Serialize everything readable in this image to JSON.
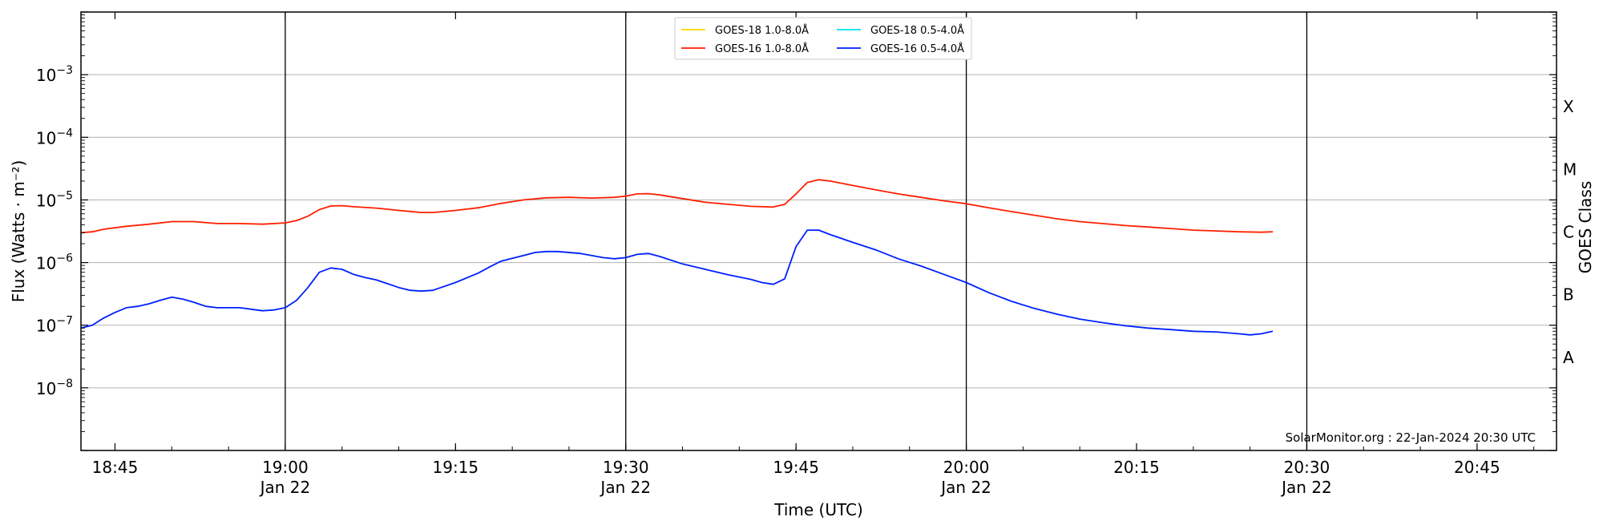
{
  "chart_data": {
    "type": "line",
    "xlabel": "Time (UTC)",
    "ylabel": "Flux (Watts · m⁻²)",
    "right_ylabel": "GOES Class",
    "credit": "SolarMonitor.org : 22-Jan-2024 20:30 UTC",
    "y_scale": "log",
    "ylim": [
      1e-09,
      0.01
    ],
    "xlim": [
      "2024-01-22 18:42",
      "2024-01-22 20:52"
    ],
    "x_ticks": [
      {
        "time": "18:45",
        "label": "18:45",
        "date": ""
      },
      {
        "time": "19:00",
        "label": "19:00",
        "date": "Jan 22"
      },
      {
        "time": "19:15",
        "label": "19:15",
        "date": ""
      },
      {
        "time": "19:30",
        "label": "19:30",
        "date": "Jan 22"
      },
      {
        "time": "19:45",
        "label": "19:45",
        "date": ""
      },
      {
        "time": "20:00",
        "label": "20:00",
        "date": "Jan 22"
      },
      {
        "time": "20:15",
        "label": "20:15",
        "date": ""
      },
      {
        "time": "20:30",
        "label": "20:30",
        "date": "Jan 22"
      },
      {
        "time": "20:45",
        "label": "20:45",
        "date": ""
      }
    ],
    "vlines": [
      "19:00",
      "19:30",
      "20:00",
      "20:30"
    ],
    "y_ticks": [
      {
        "value": 1e-08,
        "base": "10",
        "exp": "−8"
      },
      {
        "value": 1e-07,
        "base": "10",
        "exp": "−7"
      },
      {
        "value": 1e-06,
        "base": "10",
        "exp": "−6"
      },
      {
        "value": 1e-05,
        "base": "10",
        "exp": "−5"
      },
      {
        "value": 0.0001,
        "base": "10",
        "exp": "−4"
      },
      {
        "value": 0.001,
        "base": "10",
        "exp": "−3"
      }
    ],
    "goes_classes": [
      {
        "label": "A",
        "value": 3.16e-08
      },
      {
        "label": "B",
        "value": 3.16e-07
      },
      {
        "label": "C",
        "value": 3.16e-06
      },
      {
        "label": "M",
        "value": 3.16e-05
      },
      {
        "label": "X",
        "value": 0.000316
      }
    ],
    "grid": true,
    "legend_position": "top-center",
    "series": [
      {
        "name": "GOES-18 1.0-8.0Å",
        "color": "#ffd700",
        "points": []
      },
      {
        "name": "GOES-18 0.5-4.0Å",
        "color": "#00e5ee",
        "points": []
      },
      {
        "name": "GOES-16 1.0-8.0Å",
        "color": "#ff2000",
        "points": [
          [
            "18:42",
            3e-06
          ],
          [
            "18:43",
            3.1e-06
          ],
          [
            "18:44",
            3.4e-06
          ],
          [
            "18:46",
            3.8e-06
          ],
          [
            "18:48",
            4.1e-06
          ],
          [
            "18:50",
            4.5e-06
          ],
          [
            "18:52",
            4.5e-06
          ],
          [
            "18:54",
            4.2e-06
          ],
          [
            "18:56",
            4.2e-06
          ],
          [
            "18:58",
            4.1e-06
          ],
          [
            "19:00",
            4.3e-06
          ],
          [
            "19:01",
            4.7e-06
          ],
          [
            "19:02",
            5.5e-06
          ],
          [
            "19:03",
            7e-06
          ],
          [
            "19:04",
            8e-06
          ],
          [
            "19:05",
            8.1e-06
          ],
          [
            "19:06",
            7.8e-06
          ],
          [
            "19:08",
            7.4e-06
          ],
          [
            "19:10",
            6.8e-06
          ],
          [
            "19:12",
            6.3e-06
          ],
          [
            "19:13",
            6.3e-06
          ],
          [
            "19:15",
            6.8e-06
          ],
          [
            "19:17",
            7.5e-06
          ],
          [
            "19:19",
            8.8e-06
          ],
          [
            "19:21",
            1e-05
          ],
          [
            "19:23",
            1.08e-05
          ],
          [
            "19:25",
            1.1e-05
          ],
          [
            "19:27",
            1.07e-05
          ],
          [
            "19:29",
            1.1e-05
          ],
          [
            "19:30",
            1.15e-05
          ],
          [
            "19:31",
            1.25e-05
          ],
          [
            "19:32",
            1.26e-05
          ],
          [
            "19:33",
            1.2e-05
          ],
          [
            "19:35",
            1.05e-05
          ],
          [
            "19:37",
            9.2e-06
          ],
          [
            "19:39",
            8.5e-06
          ],
          [
            "19:41",
            7.9e-06
          ],
          [
            "19:43",
            7.7e-06
          ],
          [
            "19:44",
            8.5e-06
          ],
          [
            "19:45",
            1.25e-05
          ],
          [
            "19:46",
            1.9e-05
          ],
          [
            "19:47",
            2.1e-05
          ],
          [
            "19:48",
            2e-05
          ],
          [
            "19:50",
            1.7e-05
          ],
          [
            "19:52",
            1.45e-05
          ],
          [
            "19:54",
            1.25e-05
          ],
          [
            "19:56",
            1.1e-05
          ],
          [
            "19:58",
            9.7e-06
          ],
          [
            "20:00",
            8.7e-06
          ],
          [
            "20:02",
            7.5e-06
          ],
          [
            "20:04",
            6.5e-06
          ],
          [
            "20:06",
            5.7e-06
          ],
          [
            "20:08",
            5e-06
          ],
          [
            "20:10",
            4.5e-06
          ],
          [
            "20:12",
            4.2e-06
          ],
          [
            "20:14",
            3.9e-06
          ],
          [
            "20:16",
            3.7e-06
          ],
          [
            "20:18",
            3.5e-06
          ],
          [
            "20:20",
            3.3e-06
          ],
          [
            "20:22",
            3.2e-06
          ],
          [
            "20:24",
            3.1e-06
          ],
          [
            "20:26",
            3.05e-06
          ],
          [
            "20:27",
            3.1e-06
          ]
        ]
      },
      {
        "name": "GOES-16 0.5-4.0Å",
        "color": "#0020ff",
        "points": [
          [
            "18:42",
            9e-08
          ],
          [
            "18:43",
            1e-07
          ],
          [
            "18:44",
            1.3e-07
          ],
          [
            "18:45",
            1.6e-07
          ],
          [
            "18:46",
            1.9e-07
          ],
          [
            "18:47",
            2e-07
          ],
          [
            "18:48",
            2.2e-07
          ],
          [
            "18:49",
            2.5e-07
          ],
          [
            "18:50",
            2.8e-07
          ],
          [
            "18:51",
            2.6e-07
          ],
          [
            "18:52",
            2.3e-07
          ],
          [
            "18:53",
            2e-07
          ],
          [
            "18:54",
            1.9e-07
          ],
          [
            "18:56",
            1.9e-07
          ],
          [
            "18:57",
            1.8e-07
          ],
          [
            "18:58",
            1.7e-07
          ],
          [
            "18:59",
            1.75e-07
          ],
          [
            "19:00",
            1.9e-07
          ],
          [
            "19:01",
            2.5e-07
          ],
          [
            "19:02",
            4e-07
          ],
          [
            "19:03",
            7e-07
          ],
          [
            "19:04",
            8.2e-07
          ],
          [
            "19:05",
            7.8e-07
          ],
          [
            "19:06",
            6.5e-07
          ],
          [
            "19:07",
            5.8e-07
          ],
          [
            "19:08",
            5.3e-07
          ],
          [
            "19:09",
            4.6e-07
          ],
          [
            "19:10",
            4e-07
          ],
          [
            "19:11",
            3.6e-07
          ],
          [
            "19:12",
            3.5e-07
          ],
          [
            "19:13",
            3.6e-07
          ],
          [
            "19:15",
            4.8e-07
          ],
          [
            "19:17",
            6.8e-07
          ],
          [
            "19:18",
            8.5e-07
          ],
          [
            "19:19",
            1.05e-06
          ],
          [
            "19:21",
            1.3e-06
          ],
          [
            "19:22",
            1.45e-06
          ],
          [
            "19:23",
            1.5e-06
          ],
          [
            "19:24",
            1.5e-06
          ],
          [
            "19:26",
            1.4e-06
          ],
          [
            "19:28",
            1.2e-06
          ],
          [
            "19:29",
            1.15e-06
          ],
          [
            "19:30",
            1.2e-06
          ],
          [
            "19:31",
            1.35e-06
          ],
          [
            "19:32",
            1.4e-06
          ],
          [
            "19:33",
            1.25e-06
          ],
          [
            "19:35",
            9.5e-07
          ],
          [
            "19:37",
            7.8e-07
          ],
          [
            "19:39",
            6.4e-07
          ],
          [
            "19:41",
            5.4e-07
          ],
          [
            "19:42",
            4.8e-07
          ],
          [
            "19:43",
            4.5e-07
          ],
          [
            "19:44",
            5.5e-07
          ],
          [
            "19:45",
            1.8e-06
          ],
          [
            "19:46",
            3.3e-06
          ],
          [
            "19:47",
            3.3e-06
          ],
          [
            "19:48",
            2.8e-06
          ],
          [
            "19:50",
            2.1e-06
          ],
          [
            "19:52",
            1.6e-06
          ],
          [
            "19:54",
            1.15e-06
          ],
          [
            "19:56",
            8.8e-07
          ],
          [
            "19:58",
            6.5e-07
          ],
          [
            "20:00",
            4.8e-07
          ],
          [
            "20:02",
            3.3e-07
          ],
          [
            "20:04",
            2.4e-07
          ],
          [
            "20:06",
            1.85e-07
          ],
          [
            "20:08",
            1.5e-07
          ],
          [
            "20:10",
            1.25e-07
          ],
          [
            "20:12",
            1.1e-07
          ],
          [
            "20:14",
            9.8e-08
          ],
          [
            "20:16",
            9e-08
          ],
          [
            "20:18",
            8.5e-08
          ],
          [
            "20:20",
            8e-08
          ],
          [
            "20:22",
            7.8e-08
          ],
          [
            "20:24",
            7.3e-08
          ],
          [
            "20:25",
            7e-08
          ],
          [
            "20:26",
            7.3e-08
          ],
          [
            "20:27",
            8e-08
          ]
        ]
      }
    ]
  }
}
